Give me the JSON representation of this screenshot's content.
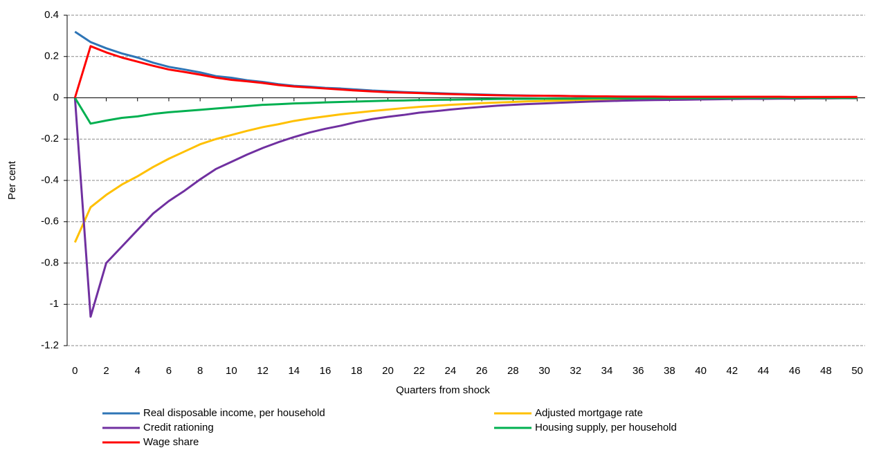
{
  "chart_data": {
    "type": "line",
    "x_label": "Quarters from shock",
    "y_label": "Per cent",
    "x": [
      0,
      1,
      2,
      3,
      4,
      5,
      6,
      7,
      8,
      9,
      10,
      11,
      12,
      13,
      14,
      15,
      16,
      17,
      18,
      19,
      20,
      21,
      22,
      23,
      24,
      25,
      26,
      27,
      28,
      29,
      30,
      31,
      32,
      33,
      34,
      35,
      36,
      37,
      38,
      39,
      40,
      41,
      42,
      43,
      44,
      45,
      46,
      47,
      48,
      49,
      50
    ],
    "xlim": [
      -0.5,
      50.5
    ],
    "xticks": [
      0,
      2,
      4,
      6,
      8,
      10,
      12,
      14,
      16,
      18,
      20,
      22,
      24,
      26,
      28,
      30,
      32,
      34,
      36,
      38,
      40,
      42,
      44,
      46,
      48,
      50
    ],
    "ylim": [
      -1.2,
      0.4
    ],
    "yticks": [
      0.4,
      0.2,
      0,
      -0.2,
      -0.4,
      -0.6,
      -0.8,
      -1,
      -1.2
    ],
    "grid": true,
    "series": [
      {
        "name": "Real disposable income, per household",
        "color": "#2e75b6",
        "values": [
          0.32,
          0.27,
          0.24,
          0.215,
          0.195,
          0.17,
          0.15,
          0.137,
          0.123,
          0.105,
          0.097,
          0.085,
          0.077,
          0.066,
          0.058,
          0.054,
          0.048,
          0.045,
          0.04,
          0.035,
          0.032,
          0.028,
          0.025,
          0.023,
          0.02,
          0.018,
          0.016,
          0.014,
          0.012,
          0.011,
          0.01,
          0.009,
          0.008,
          0.007,
          0.006,
          0.006,
          0.005,
          0.005,
          0.005,
          0.004,
          0.004,
          0.004,
          0.004,
          0.003,
          0.003,
          0.003,
          0.003,
          0.003,
          0.003,
          0.002,
          0.002
        ]
      },
      {
        "name": "Adjusted mortgage rate",
        "color": "#ffc000",
        "values": [
          -0.7,
          -0.53,
          -0.47,
          -0.42,
          -0.38,
          -0.335,
          -0.295,
          -0.26,
          -0.225,
          -0.2,
          -0.18,
          -0.16,
          -0.142,
          -0.128,
          -0.112,
          -0.1,
          -0.09,
          -0.08,
          -0.072,
          -0.064,
          -0.057,
          -0.05,
          -0.044,
          -0.039,
          -0.034,
          -0.03,
          -0.026,
          -0.023,
          -0.02,
          -0.017,
          -0.015,
          -0.013,
          -0.011,
          -0.01,
          -0.009,
          -0.008,
          -0.007,
          -0.006,
          -0.005,
          -0.005,
          -0.004,
          -0.004,
          -0.003,
          -0.003,
          -0.003,
          -0.002,
          -0.002,
          -0.002,
          -0.002,
          -0.001,
          -0.001
        ]
      },
      {
        "name": "Credit rationing",
        "color": "#7030a0",
        "values": [
          0,
          -1.06,
          -0.8,
          -0.72,
          -0.64,
          -0.56,
          -0.5,
          -0.45,
          -0.395,
          -0.345,
          -0.31,
          -0.275,
          -0.243,
          -0.215,
          -0.19,
          -0.168,
          -0.15,
          -0.135,
          -0.117,
          -0.103,
          -0.092,
          -0.083,
          -0.072,
          -0.065,
          -0.057,
          -0.05,
          -0.044,
          -0.038,
          -0.034,
          -0.03,
          -0.027,
          -0.024,
          -0.021,
          -0.018,
          -0.016,
          -0.014,
          -0.012,
          -0.011,
          -0.01,
          -0.009,
          -0.008,
          -0.007,
          -0.006,
          -0.005,
          -0.005,
          -0.004,
          -0.004,
          -0.003,
          -0.003,
          -0.002,
          -0.002
        ]
      },
      {
        "name": "Housing supply, per household",
        "color": "#00b050",
        "values": [
          0,
          -0.125,
          -0.11,
          -0.097,
          -0.09,
          -0.078,
          -0.07,
          -0.064,
          -0.058,
          -0.052,
          -0.046,
          -0.04,
          -0.034,
          -0.031,
          -0.027,
          -0.025,
          -0.022,
          -0.02,
          -0.018,
          -0.016,
          -0.014,
          -0.013,
          -0.011,
          -0.01,
          -0.009,
          -0.008,
          -0.007,
          -0.006,
          -0.005,
          -0.005,
          -0.004,
          -0.004,
          -0.004,
          -0.003,
          -0.003,
          -0.003,
          -0.003,
          -0.002,
          -0.002,
          -0.002,
          -0.002,
          -0.002,
          -0.002,
          -0.001,
          -0.001,
          -0.001,
          -0.001,
          -0.001,
          -0.001,
          -0.001,
          -0.001
        ]
      },
      {
        "name": "Wage share",
        "color": "#ff0000",
        "values": [
          0,
          0.25,
          0.22,
          0.195,
          0.175,
          0.155,
          0.137,
          0.125,
          0.112,
          0.098,
          0.087,
          0.08,
          0.072,
          0.062,
          0.055,
          0.05,
          0.045,
          0.04,
          0.035,
          0.031,
          0.027,
          0.025,
          0.023,
          0.02,
          0.018,
          0.016,
          0.014,
          0.012,
          0.011,
          0.01,
          0.01,
          0.009,
          0.008,
          0.007,
          0.007,
          0.006,
          0.006,
          0.006,
          0.005,
          0.005,
          0.005,
          0.005,
          0.005,
          0.005,
          0.005,
          0.005,
          0.004,
          0.004,
          0.004,
          0.004,
          0.004
        ]
      }
    ]
  }
}
